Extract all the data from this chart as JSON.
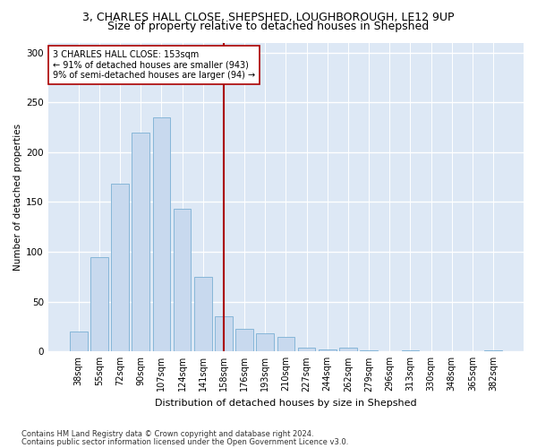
{
  "title1": "3, CHARLES HALL CLOSE, SHEPSHED, LOUGHBOROUGH, LE12 9UP",
  "title2": "Size of property relative to detached houses in Shepshed",
  "xlabel": "Distribution of detached houses by size in Shepshed",
  "ylabel": "Number of detached properties",
  "footnote1": "Contains HM Land Registry data © Crown copyright and database right 2024.",
  "footnote2": "Contains public sector information licensed under the Open Government Licence v3.0.",
  "bar_labels": [
    "38sqm",
    "55sqm",
    "72sqm",
    "90sqm",
    "107sqm",
    "124sqm",
    "141sqm",
    "158sqm",
    "176sqm",
    "193sqm",
    "210sqm",
    "227sqm",
    "244sqm",
    "262sqm",
    "279sqm",
    "296sqm",
    "313sqm",
    "330sqm",
    "348sqm",
    "365sqm",
    "382sqm"
  ],
  "bar_values": [
    20,
    95,
    168,
    220,
    235,
    143,
    75,
    35,
    23,
    18,
    15,
    4,
    2,
    4,
    1,
    0,
    1,
    0,
    0,
    0,
    1
  ],
  "bar_color": "#c8d9ee",
  "bar_edgecolor": "#7aafd4",
  "bg_color": "#dde8f5",
  "grid_color": "#ffffff",
  "vline_x_label": "158sqm",
  "vline_color": "#aa0000",
  "annotation_text": "3 CHARLES HALL CLOSE: 153sqm\n← 91% of detached houses are smaller (943)\n9% of semi-detached houses are larger (94) →",
  "annotation_box_edgecolor": "#aa0000",
  "ylim": [
    0,
    310
  ],
  "yticks": [
    0,
    50,
    100,
    150,
    200,
    250,
    300
  ],
  "title1_fontsize": 9,
  "title2_fontsize": 9,
  "xlabel_fontsize": 8,
  "ylabel_fontsize": 7.5,
  "tick_fontsize": 7,
  "annot_fontsize": 7,
  "footnote_fontsize": 6
}
